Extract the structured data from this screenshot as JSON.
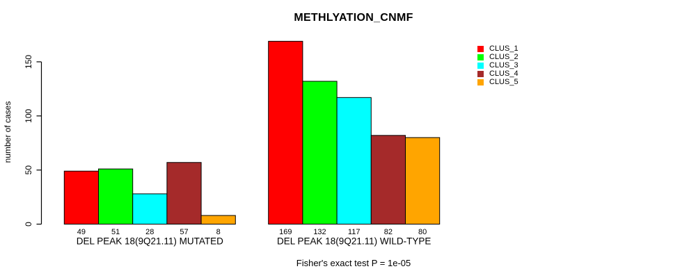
{
  "chart_data": {
    "type": "bar",
    "title": "METHLYATION_CNMF",
    "ylabel": "number of cases",
    "xlabel": "",
    "annotation": "Fisher's exact test P = 1e-05",
    "ylim": [
      0,
      175
    ],
    "y_ticks": [
      0,
      50,
      100,
      150
    ],
    "grid": false,
    "legend_position": "right",
    "bar_value_labels_shown": true,
    "categories": [
      "DEL PEAK 18(9Q21.11) MUTATED",
      "DEL PEAK 18(9Q21.11) WILD-TYPE"
    ],
    "series": [
      {
        "name": "CLUS_1",
        "color": "#FF0000",
        "values": [
          49,
          169
        ]
      },
      {
        "name": "CLUS_2",
        "color": "#00FF00",
        "values": [
          51,
          132
        ]
      },
      {
        "name": "CLUS_3",
        "color": "#00FFFF",
        "values": [
          28,
          117
        ]
      },
      {
        "name": "CLUS_4",
        "color": "#A52A2A",
        "values": [
          57,
          82
        ]
      },
      {
        "name": "CLUS_5",
        "color": "#FFA500",
        "values": [
          8,
          80
        ]
      }
    ],
    "axis_color": "#000000",
    "bar_border_color": "#000000",
    "background_color": "#FFFFFF"
  }
}
